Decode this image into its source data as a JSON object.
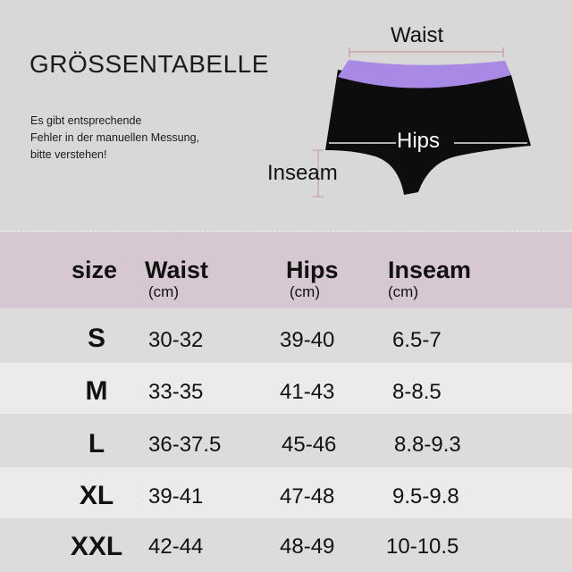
{
  "title": "GRÖSSENTABELLE",
  "note_lines": [
    "Es gibt entsprechende",
    "Fehler in der manuellen Messung,",
    "bitte verstehen!"
  ],
  "diagram": {
    "waist_label": "Waist",
    "hips_label": "Hips",
    "inseam_label": "Inseam",
    "waistband_color": "#a88ae4",
    "body_color": "#0d0d0d"
  },
  "table": {
    "headers": {
      "size": "size",
      "waist": "Waist",
      "hips": "Hips",
      "inseam": "Inseam",
      "waist_unit": "(cm)",
      "hips_unit": "(cm)",
      "inseam_unit": "(cm)"
    },
    "header_bg": "#d6c7d2",
    "rows": [
      {
        "size": "S",
        "waist": "30-32",
        "hips": "39-40",
        "inseam": "6.5-7"
      },
      {
        "size": "M",
        "waist": "33-35",
        "hips": "41-43",
        "inseam": "8-8.5"
      },
      {
        "size": "L",
        "waist": "36-37.5",
        "hips": "45-46",
        "inseam": "8.8-9.3"
      },
      {
        "size": "XL",
        "waist": "39-41",
        "hips": "47-48",
        "inseam": "9.5-9.8"
      },
      {
        "size": "XXL",
        "waist": "42-44",
        "hips": "48-49",
        "inseam": "10-10.5"
      }
    ]
  }
}
